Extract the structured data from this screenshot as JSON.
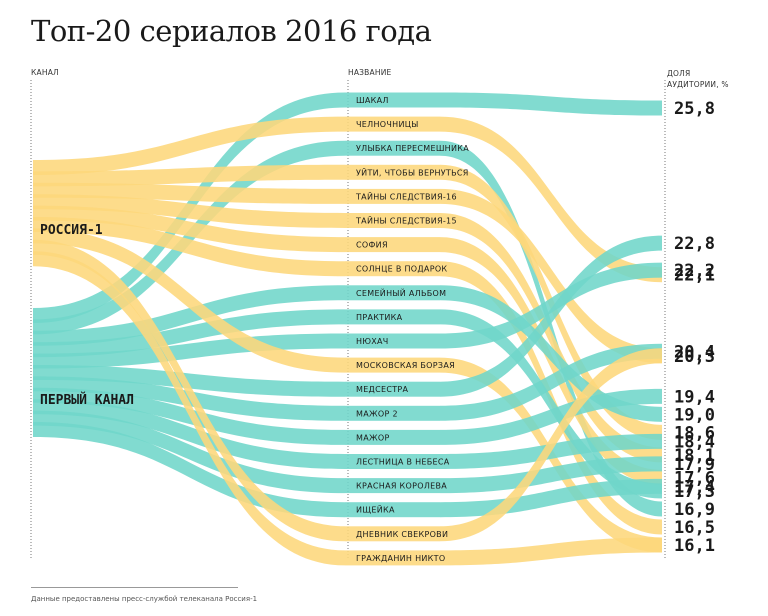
{
  "title": "Топ-20 сериалов 2016 года",
  "headers": {
    "channel": "КАНАЛ",
    "name": "НАЗВАНИЕ",
    "share_line1": "ДОЛЯ",
    "share_line2": "АУДИТОРИИ, %"
  },
  "footnote": "Данные предоставлены пресс-службой телеканала Россия-1",
  "colors": {
    "rossiya": "#fdd77b",
    "perviy": "#6fd6ca"
  },
  "chart_data": {
    "type": "sankey",
    "channels": [
      {
        "name": "РОССИЯ-1",
        "color": "#fdd77b"
      },
      {
        "name": "ПЕРВЫЙ КАНАЛ",
        "color": "#6fd6ca"
      }
    ],
    "shows": [
      {
        "name": "ШАКАЛ",
        "channel": "ПЕРВЫЙ КАНАЛ",
        "share": 25.8
      },
      {
        "name": "ЧЕЛНОЧНИЦЫ",
        "channel": "РОССИЯ-1",
        "share": 22.1
      },
      {
        "name": "УЛЫБКА ПЕРЕСМЕШНИКА",
        "channel": "ПЕРВЫЙ КАНАЛ",
        "share": 16.9
      },
      {
        "name": "УЙТИ, ЧТОБЫ ВЕРНУТЬСЯ",
        "channel": "РОССИЯ-1",
        "share": 18.6
      },
      {
        "name": "ТАЙНЫ СЛЕДСТВИЯ-16",
        "channel": "РОССИЯ-1",
        "share": 20.3
      },
      {
        "name": "ТАЙНЫ СЛЕДСТВИЯ-15",
        "channel": "РОССИЯ-1",
        "share": 18.1
      },
      {
        "name": "СОФИЯ",
        "channel": "РОССИЯ-1",
        "share": 17.6
      },
      {
        "name": "СОЛНЦЕ В ПОДАРОК",
        "channel": "РОССИЯ-1",
        "share": 16.5
      },
      {
        "name": "СЕМЕЙНЫЙ АЛЬБОМ",
        "channel": "ПЕРВЫЙ КАНАЛ",
        "share": 19.0
      },
      {
        "name": "ПРАКТИКА",
        "channel": "ПЕРВЫЙ КАНАЛ",
        "share": 17.3
      },
      {
        "name": "НЮХАЧ",
        "channel": "ПЕРВЫЙ КАНАЛ",
        "share": 22.2
      },
      {
        "name": "МОСКОВСКАЯ БОРЗАЯ",
        "channel": "РОССИЯ-1",
        "share": 16.1
      },
      {
        "name": "МЕДСЕСТРА",
        "channel": "ПЕРВЫЙ КАНАЛ",
        "share": 22.8
      },
      {
        "name": "МАЖОР 2",
        "channel": "ПЕРВЫЙ КАНАЛ",
        "share": 20.4
      },
      {
        "name": "МАЖОР",
        "channel": "ПЕРВЫЙ КАНАЛ",
        "share": 19.4
      },
      {
        "name": "ЛЕСТНИЦА В НЕБЕСА",
        "channel": "ПЕРВЫЙ КАНАЛ",
        "share": 18.4
      },
      {
        "name": "КРАСНАЯ КОРОЛЕВА",
        "channel": "ПЕРВЫЙ КАНАЛ",
        "share": 17.9
      },
      {
        "name": "ИЩЕЙКА",
        "channel": "ПЕРВЫЙ КАНАЛ",
        "share": 17.4
      },
      {
        "name": "ДНЕВНИК СВЕКРОВИ",
        "channel": "РОССИЯ-1",
        "share": 20.3
      },
      {
        "name": "ГРАЖДАНИН НИКТО",
        "channel": "РОССИЯ-1",
        "share": 16.1
      }
    ],
    "share_labels": [
      "25,8",
      "22,8",
      "22,2",
      "22,1",
      "20,4",
      "20,3",
      "19,4",
      "19,0",
      "18,6",
      "18,4",
      "18,1",
      "17,9",
      "17,6",
      "17,4",
      "17,3",
      "16,9",
      "16,5",
      "16,1"
    ]
  }
}
